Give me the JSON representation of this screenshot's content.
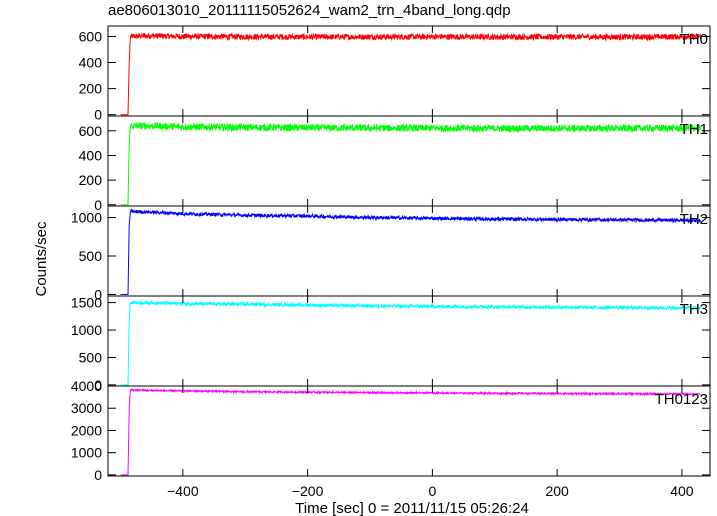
{
  "title": "ae806013010_20111115052624_wam2_trn_4band_long.qdp",
  "ylabel": "Counts/sec",
  "xlabel": "Time [sec] 0 = 2011/11/15 05:26:24",
  "chart_data": {
    "type": "line",
    "title": "ae806013010_20111115052624_wam2_trn_4band_long.qdp",
    "xlabel": "Time [sec] 0 = 2011/11/15 05:26:24",
    "ylabel": "Counts/sec",
    "xlim": [
      -520,
      445
    ],
    "xticks": [
      -400,
      -200,
      0,
      200,
      400
    ],
    "xticklabels": [
      "−400",
      "−200",
      "0",
      "200",
      "400"
    ],
    "panels": [
      {
        "name": "TH0",
        "color": "#ff0000",
        "ylim": [
          -10,
          680
        ],
        "yticks": [
          0,
          200,
          400,
          600
        ],
        "series": [
          {
            "name": "TH0",
            "x": [
              -500,
              -488,
              -486,
              -484,
              -450,
              -400,
              -300,
              -200,
              -100,
              0,
              100,
              200,
              300,
              400,
              430
            ],
            "y": [
              0,
              0,
              400,
              600,
              605,
              600,
              598,
              596,
              597,
              598,
              596,
              597,
              596,
              598,
              600
            ],
            "noise": 22
          }
        ]
      },
      {
        "name": "TH1",
        "color": "#00ff00",
        "ylim": [
          -10,
          720
        ],
        "yticks": [
          0,
          200,
          400,
          600
        ],
        "series": [
          {
            "name": "TH1",
            "x": [
              -500,
              -488,
              -486,
              -484,
              -450,
              -400,
              -300,
              -200,
              -100,
              0,
              100,
              200,
              300,
              400,
              430
            ],
            "y": [
              0,
              0,
              500,
              640,
              640,
              632,
              628,
              625,
              622,
              622,
              620,
              620,
              620,
              622,
              625
            ],
            "noise": 28
          }
        ]
      },
      {
        "name": "TH2",
        "color": "#0000ff",
        "ylim": [
          -20,
          1150
        ],
        "yticks": [
          0,
          500,
          1000
        ],
        "series": [
          {
            "name": "TH2",
            "x": [
              -500,
              -488,
              -486,
              -484,
              -450,
              -400,
              -300,
              -200,
              -100,
              0,
              100,
              200,
              300,
              400,
              430
            ],
            "y": [
              0,
              0,
              900,
              1080,
              1070,
              1050,
              1030,
              1020,
              1000,
              990,
              980,
              975,
              970,
              965,
              960
            ],
            "noise": 22
          }
        ]
      },
      {
        "name": "TH3",
        "color": "#00ffff",
        "ylim": [
          -20,
          1620
        ],
        "yticks": [
          0,
          500,
          1000,
          1500
        ],
        "series": [
          {
            "name": "TH3",
            "x": [
              -500,
              -488,
              -486,
              -484,
              -450,
              -400,
              -300,
              -200,
              -100,
              0,
              100,
              200,
              300,
              400,
              430
            ],
            "y": [
              0,
              0,
              1200,
              1500,
              1495,
              1480,
              1470,
              1455,
              1440,
              1430,
              1425,
              1415,
              1410,
              1400,
              1400
            ],
            "noise": 28
          }
        ]
      },
      {
        "name": "TH0123",
        "color": "#ff00ff",
        "ylim": [
          -50,
          4000
        ],
        "yticks": [
          0,
          1000,
          2000,
          3000,
          4000
        ],
        "series": [
          {
            "name": "TH0123",
            "x": [
              -500,
              -488,
              -486,
              -484,
              -450,
              -400,
              -300,
              -200,
              -100,
              0,
              100,
              200,
              300,
              400,
              430
            ],
            "y": [
              0,
              0,
              3000,
              3820,
              3800,
              3780,
              3740,
              3720,
              3700,
              3690,
              3670,
              3660,
              3650,
              3640,
              3640
            ],
            "noise": 35
          }
        ]
      }
    ]
  }
}
